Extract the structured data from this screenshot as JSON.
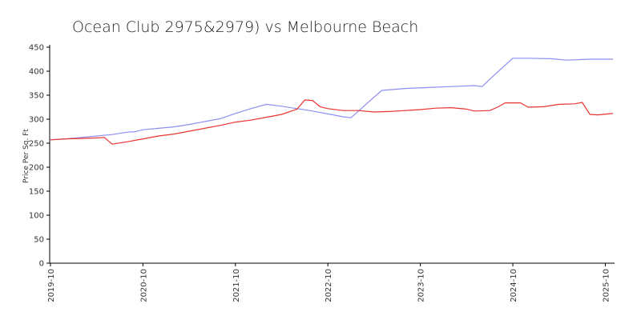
{
  "chart_data": {
    "type": "line",
    "title": "Ocean Club 2975&2979) vs Melbourne Beach",
    "xlabel": "",
    "ylabel": "Price Per Sq. Ft",
    "ylim": [
      0,
      450
    ],
    "yticks": [
      0,
      50,
      100,
      150,
      200,
      250,
      300,
      350,
      400,
      450
    ],
    "xlim": [
      "2019-10",
      "2025-11"
    ],
    "xticks": [
      "2019-10",
      "2020-10",
      "2021-10",
      "2022-10",
      "2023-10",
      "2024-10",
      "2025-10"
    ],
    "grid": false,
    "legend": "none",
    "series": [
      {
        "color": "#8e8ef2",
        "points": [
          [
            "2019-10",
            257
          ],
          [
            "2019-12",
            259
          ],
          [
            "2020-02",
            262
          ],
          [
            "2020-04",
            265
          ],
          [
            "2020-06",
            268
          ],
          [
            "2020-08",
            273
          ],
          [
            "2020-09",
            274
          ],
          [
            "2020-10",
            278
          ],
          [
            "2020-12",
            281
          ],
          [
            "2021-02",
            284
          ],
          [
            "2021-04",
            289
          ],
          [
            "2021-06",
            295
          ],
          [
            "2021-08",
            301
          ],
          [
            "2021-10",
            312
          ],
          [
            "2021-12",
            322
          ],
          [
            "2022-02",
            331
          ],
          [
            "2022-04",
            327
          ],
          [
            "2022-06",
            322
          ],
          [
            "2022-08",
            317
          ],
          [
            "2022-10",
            311
          ],
          [
            "2022-12",
            305
          ],
          [
            "2023-01",
            303
          ],
          [
            "2023-03",
            332
          ],
          [
            "2023-05",
            360
          ],
          [
            "2023-08",
            364
          ],
          [
            "2023-11",
            366
          ],
          [
            "2024-02",
            368
          ],
          [
            "2024-05",
            370
          ],
          [
            "2024-06",
            368
          ],
          [
            "2024-08",
            398
          ],
          [
            "2024-10",
            427
          ],
          [
            "2024-12",
            427
          ],
          [
            "2025-03",
            426
          ],
          [
            "2025-05",
            423
          ],
          [
            "2025-08",
            425
          ],
          [
            "2025-11",
            425
          ]
        ]
      },
      {
        "color": "#e8332f",
        "points": [
          [
            "2019-10",
            257
          ],
          [
            "2019-12",
            259
          ],
          [
            "2020-02",
            260
          ],
          [
            "2020-04",
            261
          ],
          [
            "2020-05",
            262
          ],
          [
            "2020-06",
            248
          ],
          [
            "2020-08",
            253
          ],
          [
            "2020-10",
            259
          ],
          [
            "2020-12",
            265
          ],
          [
            "2021-02",
            269
          ],
          [
            "2021-04",
            275
          ],
          [
            "2021-06",
            281
          ],
          [
            "2021-08",
            287
          ],
          [
            "2021-10",
            294
          ],
          [
            "2021-12",
            298
          ],
          [
            "2022-02",
            304
          ],
          [
            "2022-04",
            310
          ],
          [
            "2022-06",
            321
          ],
          [
            "2022-07",
            340
          ],
          [
            "2022-08",
            339
          ],
          [
            "2022-09",
            326
          ],
          [
            "2022-10",
            322
          ],
          [
            "2022-12",
            318
          ],
          [
            "2023-02",
            318
          ],
          [
            "2023-04",
            315
          ],
          [
            "2023-06",
            316
          ],
          [
            "2023-08",
            318
          ],
          [
            "2023-10",
            320
          ],
          [
            "2023-12",
            323
          ],
          [
            "2024-02",
            324
          ],
          [
            "2024-04",
            321
          ],
          [
            "2024-05",
            317
          ],
          [
            "2024-07",
            318
          ],
          [
            "2024-08",
            325
          ],
          [
            "2024-09",
            334
          ],
          [
            "2024-11",
            334
          ],
          [
            "2024-12",
            325
          ],
          [
            "2025-02",
            326
          ],
          [
            "2025-04",
            331
          ],
          [
            "2025-06",
            332
          ],
          [
            "2025-07",
            335
          ],
          [
            "2025-08",
            310
          ],
          [
            "2025-09",
            309
          ],
          [
            "2025-11",
            312
          ]
        ]
      }
    ]
  }
}
